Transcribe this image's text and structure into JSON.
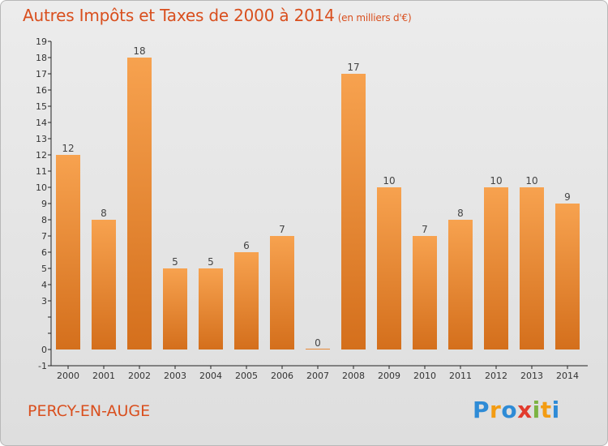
{
  "header": {
    "title": "Autres Impôts et Taxes de 2000 à 2014",
    "unit": "(en milliers d'€)"
  },
  "footer": {
    "town": "PERCY-EN-AUGE",
    "logo_letters": [
      "P",
      "r",
      "o",
      "x",
      "i",
      "t",
      "i"
    ],
    "logo_colors": [
      "#2e8bd6",
      "#f39c12",
      "#2e8bd6",
      "#e23b2d",
      "#7cb342",
      "#f39c12",
      "#2e8bd6"
    ]
  },
  "colors": {
    "title": "#d94f1e",
    "bar_light": "#f7a24f",
    "bar_dark": "#d46f1c",
    "axis": "#222222"
  },
  "chart_data": {
    "type": "bar",
    "title": "Autres Impôts et Taxes de 2000 à 2014",
    "subtitle": "(en milliers d'€)",
    "categories": [
      "2000",
      "2001",
      "2002",
      "2003",
      "2004",
      "2005",
      "2006",
      "2007",
      "2008",
      "2009",
      "2010",
      "2011",
      "2012",
      "2013",
      "2014"
    ],
    "values": [
      12,
      8,
      18,
      5,
      5,
      6,
      7,
      0,
      17,
      10,
      7,
      8,
      10,
      10,
      9
    ],
    "data_labels": [
      "12",
      "8",
      "18",
      "5",
      "5",
      "6",
      "7",
      "0",
      "17",
      "10",
      "7",
      "8",
      "10",
      "10",
      "9"
    ],
    "y_ticks": [
      "-1",
      "0",
      "",
      "",
      "3",
      "4",
      "5",
      "6",
      "7",
      "8",
      "9",
      "10",
      "11",
      "12",
      "13",
      "14",
      "15",
      "16",
      "17",
      "18",
      "19"
    ],
    "ylim": [
      -1,
      19
    ],
    "grid": false,
    "legend": "none"
  }
}
